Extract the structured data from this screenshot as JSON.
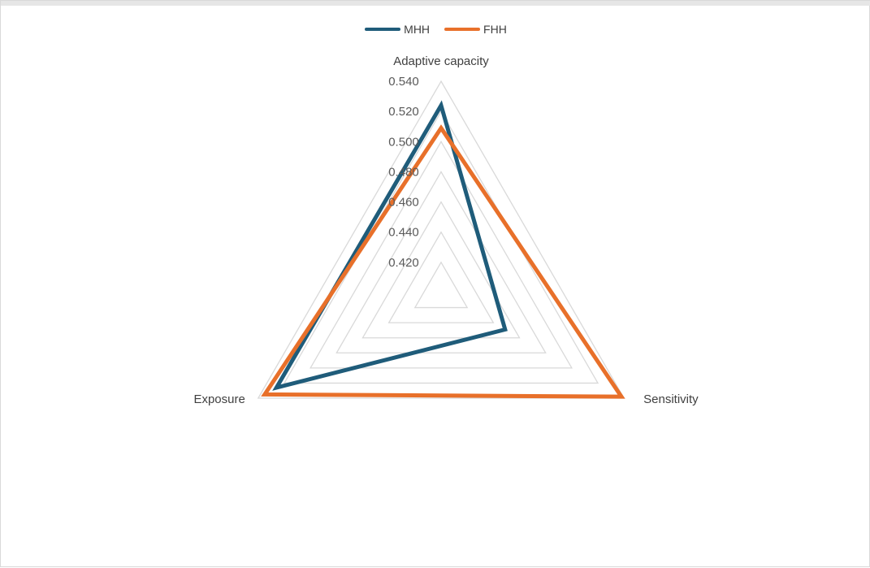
{
  "chart_data": {
    "type": "radar",
    "title": "",
    "axes": [
      "Adaptive capacity",
      "Sensitivity",
      "Exposure"
    ],
    "rlim": [
      0.4,
      0.54
    ],
    "ticks": [
      "0.420",
      "0.440",
      "0.460",
      "0.480",
      "0.500",
      "0.520",
      "0.540"
    ],
    "tick_values": [
      0.42,
      0.44,
      0.46,
      0.48,
      0.5,
      0.52,
      0.54
    ],
    "grid": true,
    "legend_position": "top",
    "series": [
      {
        "name": "MHH",
        "color": "#1f5c7a",
        "values": [
          0.524,
          0.449,
          0.526
        ]
      },
      {
        "name": "FHH",
        "color": "#e8702a",
        "values": [
          0.509,
          0.538,
          0.535
        ]
      }
    ]
  }
}
